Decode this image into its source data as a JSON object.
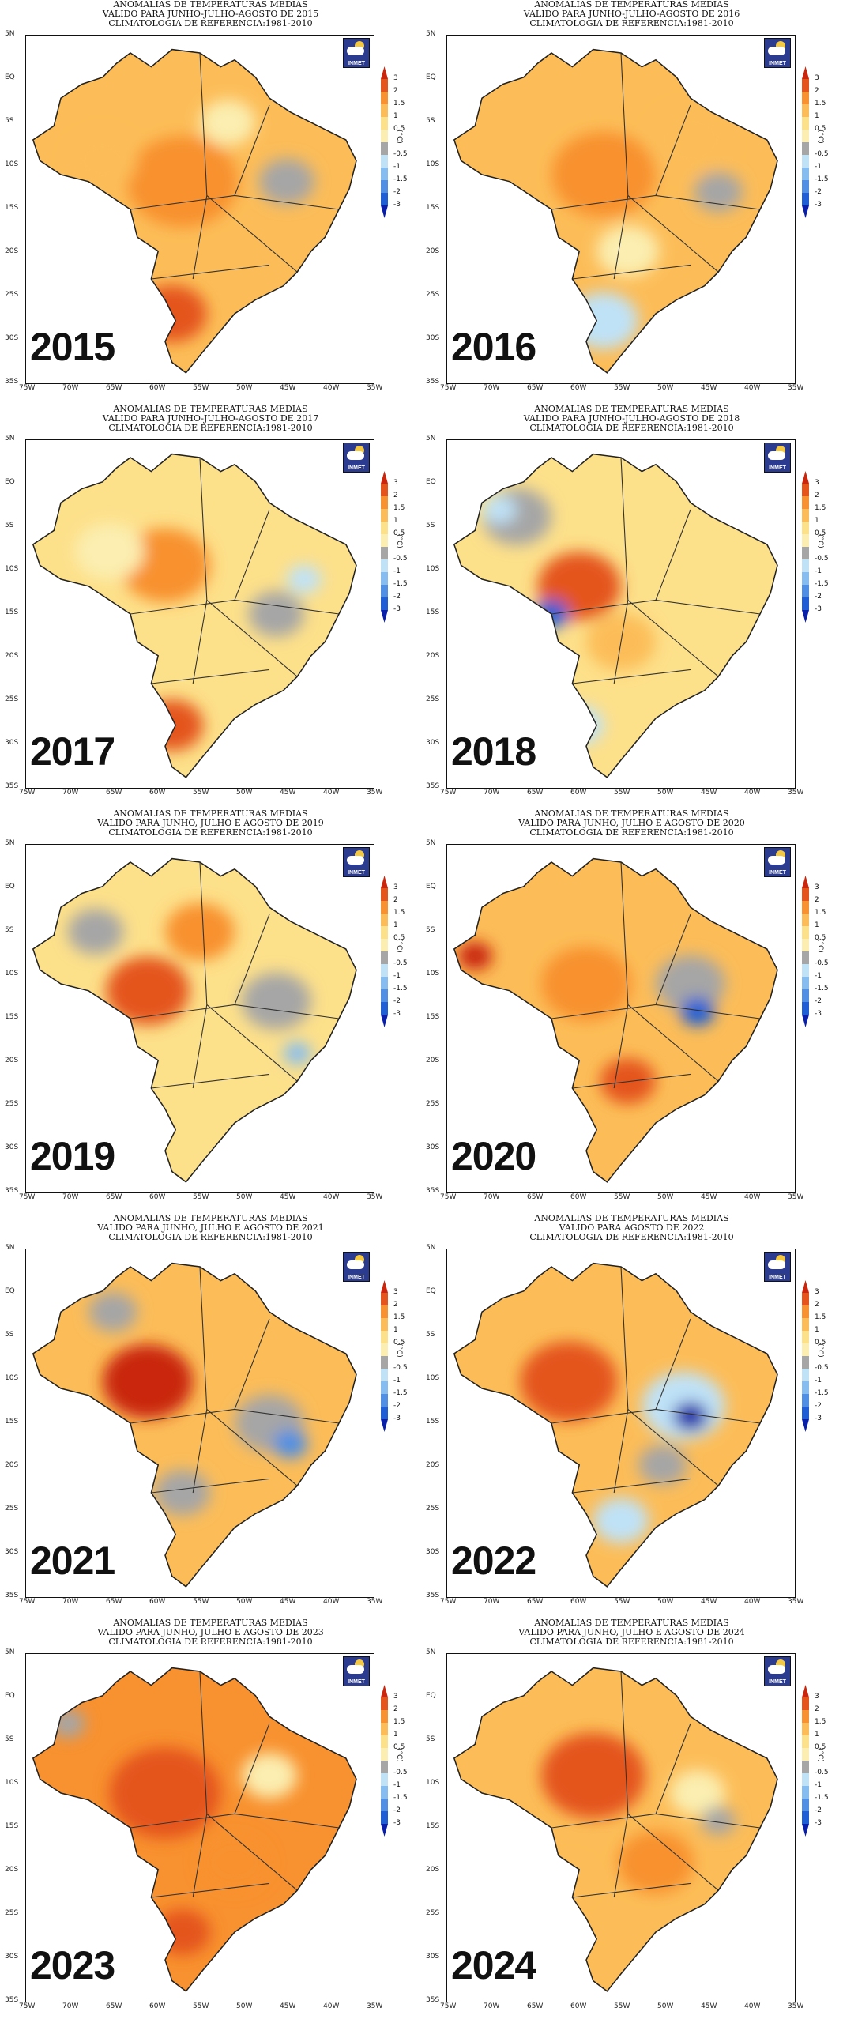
{
  "colors": {
    "neg3": "#0a1fa8",
    "neg2": "#1e5fd6",
    "neg15": "#4f8fe4",
    "neg1": "#86bdf0",
    "neg05": "#bfe2f7",
    "neutral": "#a6a6a6",
    "pos05": "#fbeeb0",
    "pos1": "#fde08a",
    "pos15": "#fcbd58",
    "pos2": "#f8912f",
    "pos3": "#e4541b",
    "pos4": "#c9260d"
  },
  "colorbar": {
    "ticks": [
      "3",
      "2",
      "1.5",
      "1",
      "0.5",
      "-0.5",
      "-1",
      "-1.5",
      "-2",
      "-3"
    ],
    "unit": "(°C)"
  },
  "axes": {
    "lat_labels": [
      "5N",
      "EQ",
      "5S",
      "10S",
      "15S",
      "20S",
      "25S",
      "30S",
      "35S"
    ],
    "lon_labels": [
      "75W",
      "70W",
      "65W",
      "60W",
      "55W",
      "50W",
      "45W",
      "40W",
      "35W"
    ]
  },
  "logo_text": "INMET",
  "panels": [
    {
      "year": "2015",
      "title": [
        "ANOMALIAS DE TEMPERATURAS MEDIAS",
        "VALIDO PARA JUNHO-JULHO-AGOSTO DE 2015",
        "CLIMATOLOGIA DE REFERENCIA:1981-2010"
      ],
      "dominant_anomaly_c": 1.5,
      "blobs": [
        [
          0.45,
          0.42,
          0.16,
          "pos2"
        ],
        [
          0.42,
          0.8,
          0.1,
          "pos3"
        ],
        [
          0.22,
          0.36,
          0.1,
          "pos15"
        ],
        [
          0.75,
          0.42,
          0.08,
          "neutral"
        ],
        [
          0.58,
          0.25,
          0.08,
          "pos05"
        ]
      ]
    },
    {
      "year": "2016",
      "title": [
        "ANOMALIAS DE TEMPERATURAS MEDIAS",
        "VALIDO PARA JUNHO-JULHO-AGOSTO DE 2016",
        "CLIMATOLOGIA DE REFERENCIA:1981-2010"
      ],
      "dominant_anomaly_c": 1.5,
      "blobs": [
        [
          0.45,
          0.4,
          0.15,
          "pos2"
        ],
        [
          0.7,
          0.3,
          0.12,
          "pos15"
        ],
        [
          0.45,
          0.82,
          0.1,
          "neg05"
        ],
        [
          0.52,
          0.62,
          0.09,
          "pos05"
        ],
        [
          0.78,
          0.45,
          0.07,
          "neutral"
        ]
      ]
    },
    {
      "year": "2017",
      "title": [
        "ANOMALIAS DE TEMPERATURAS MEDIAS",
        "VALIDO PARA JUNHO-JULHO-AGOSTO DE 2017",
        "CLIMATOLOGIA DE REFERENCIA:1981-2010"
      ],
      "dominant_anomaly_c": 1.0,
      "blobs": [
        [
          0.4,
          0.36,
          0.13,
          "pos2"
        ],
        [
          0.42,
          0.82,
          0.09,
          "pos3"
        ],
        [
          0.72,
          0.5,
          0.08,
          "neutral"
        ],
        [
          0.8,
          0.4,
          0.05,
          "neg05"
        ],
        [
          0.24,
          0.32,
          0.1,
          "pos05"
        ]
      ]
    },
    {
      "year": "2018",
      "title": [
        "ANOMALIAS DE TEMPERATURAS MEDIAS",
        "VALIDO PARA JUNHO-JULHO-AGOSTO DE 2018",
        "CLIMATOLOGIA DE REFERENCIA:1981-2010"
      ],
      "dominant_anomaly_c": 1.0,
      "blobs": [
        [
          0.38,
          0.42,
          0.12,
          "pos3"
        ],
        [
          0.2,
          0.22,
          0.1,
          "neutral"
        ],
        [
          0.3,
          0.5,
          0.05,
          "neg2"
        ],
        [
          0.5,
          0.58,
          0.1,
          "pos15"
        ],
        [
          0.38,
          0.82,
          0.07,
          "neg05"
        ],
        [
          0.15,
          0.2,
          0.05,
          "neg05"
        ]
      ]
    },
    {
      "year": "2019",
      "title": [
        "ANOMALIAS DE TEMPERATURAS MEDIAS",
        "VALIDO PARA JUNHO, JULHO E AGOSTO DE 2019",
        "CLIMATOLOGIA DE REFERENCIA:1981-2010"
      ],
      "dominant_anomaly_c": 1.0,
      "blobs": [
        [
          0.35,
          0.42,
          0.12,
          "pos3"
        ],
        [
          0.5,
          0.25,
          0.1,
          "pos2"
        ],
        [
          0.72,
          0.45,
          0.1,
          "neutral"
        ],
        [
          0.78,
          0.6,
          0.04,
          "neg1"
        ],
        [
          0.2,
          0.25,
          0.08,
          "neutral"
        ]
      ]
    },
    {
      "year": "2020",
      "title": [
        "ANOMALIAS DE TEMPERATURAS MEDIAS",
        "VALIDO PARA JUNHO, JULHO E AGOSTO DE 2020",
        "CLIMATOLOGIA DE REFERENCIA:1981-2010"
      ],
      "dominant_anomaly_c": 1.5,
      "blobs": [
        [
          0.4,
          0.4,
          0.13,
          "pos2"
        ],
        [
          0.08,
          0.32,
          0.05,
          "pos4"
        ],
        [
          0.7,
          0.4,
          0.1,
          "neutral"
        ],
        [
          0.72,
          0.48,
          0.05,
          "neg2"
        ],
        [
          0.52,
          0.68,
          0.08,
          "pos3"
        ]
      ]
    },
    {
      "year": "2021",
      "title": [
        "ANOMALIAS DE TEMPERATURAS MEDIAS",
        "VALIDO PARA JUNHO, JULHO E AGOSTO DE 2021",
        "CLIMATOLOGIA DE REFERENCIA:1981-2010"
      ],
      "dominant_anomaly_c": 1.5,
      "blobs": [
        [
          0.35,
          0.38,
          0.13,
          "pos4"
        ],
        [
          0.7,
          0.5,
          0.1,
          "neutral"
        ],
        [
          0.76,
          0.56,
          0.05,
          "neg15"
        ],
        [
          0.45,
          0.7,
          0.08,
          "neutral"
        ],
        [
          0.25,
          0.18,
          0.07,
          "neutral"
        ]
      ]
    },
    {
      "year": "2022",
      "title": [
        "ANOMALIAS DE TEMPERATURAS MEDIAS",
        "VALIDO PARA AGOSTO DE 2022",
        "CLIMATOLOGIA DE REFERENCIA:1981-2010"
      ],
      "dominant_anomaly_c": 1.5,
      "blobs": [
        [
          0.35,
          0.38,
          0.14,
          "pos3"
        ],
        [
          0.68,
          0.45,
          0.12,
          "neg05"
        ],
        [
          0.7,
          0.48,
          0.05,
          "neg3"
        ],
        [
          0.5,
          0.78,
          0.08,
          "neg05"
        ],
        [
          0.62,
          0.62,
          0.07,
          "neutral"
        ]
      ]
    },
    {
      "year": "2023",
      "title": [
        "ANOMALIAS DE TEMPERATURAS MEDIAS",
        "VALIDO PARA JUNHO, JULHO E AGOSTO DE 2023",
        "CLIMATOLOGIA DE REFERENCIA:1981-2010"
      ],
      "dominant_anomaly_c": 2.0,
      "blobs": [
        [
          0.4,
          0.4,
          0.16,
          "pos3"
        ],
        [
          0.6,
          0.6,
          0.1,
          "pos2"
        ],
        [
          0.7,
          0.35,
          0.08,
          "pos05"
        ],
        [
          0.12,
          0.2,
          0.05,
          "neutral"
        ],
        [
          0.45,
          0.8,
          0.08,
          "pos3"
        ]
      ]
    },
    {
      "year": "2024",
      "title": [
        "ANOMALIAS DE TEMPERATURAS MEDIAS",
        "VALIDO PARA JUNHO, JULHO E AGOSTO DE 2024",
        "CLIMATOLOGIA DE REFERENCIA:1981-2010"
      ],
      "dominant_anomaly_c": 1.5,
      "blobs": [
        [
          0.42,
          0.35,
          0.15,
          "pos3"
        ],
        [
          0.6,
          0.6,
          0.11,
          "pos2"
        ],
        [
          0.72,
          0.4,
          0.08,
          "pos05"
        ],
        [
          0.78,
          0.48,
          0.05,
          "neutral"
        ],
        [
          0.35,
          0.65,
          0.07,
          "pos15"
        ]
      ]
    }
  ]
}
